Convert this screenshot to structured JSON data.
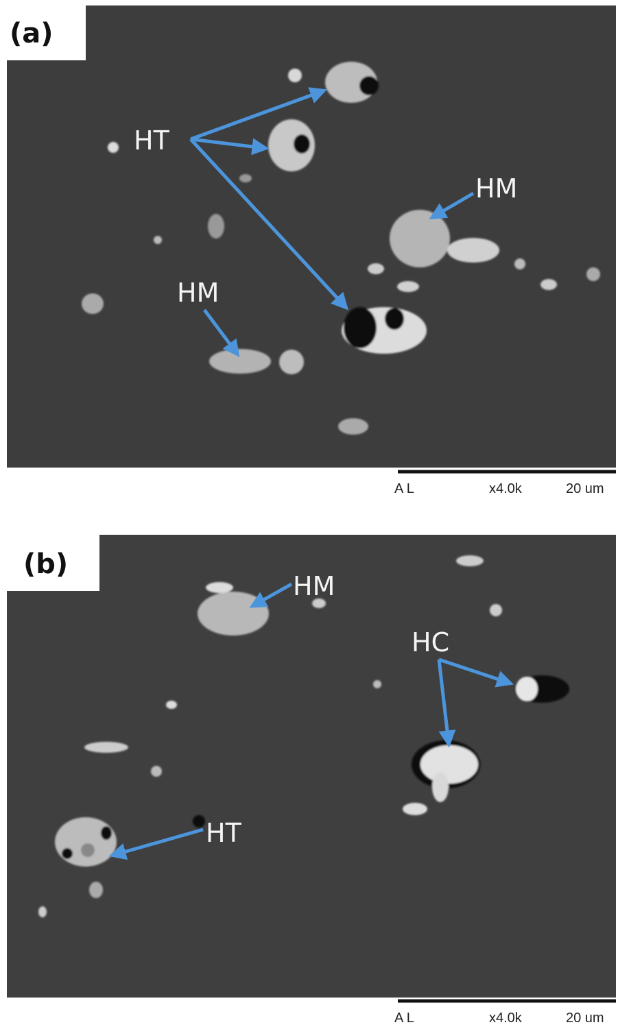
{
  "panels": [
    {
      "label": "(a)",
      "annotations": [
        "HT",
        "HM",
        "HM"
      ],
      "scale_bar": {
        "detector": "A L",
        "magnification": "x4.0k",
        "length": "20 um"
      }
    },
    {
      "label": "(b)",
      "annotations": [
        "HM",
        "HC",
        "HT"
      ],
      "scale_bar": {
        "detector": "A L",
        "magnification": "x4.0k",
        "length": "20 um"
      }
    }
  ]
}
